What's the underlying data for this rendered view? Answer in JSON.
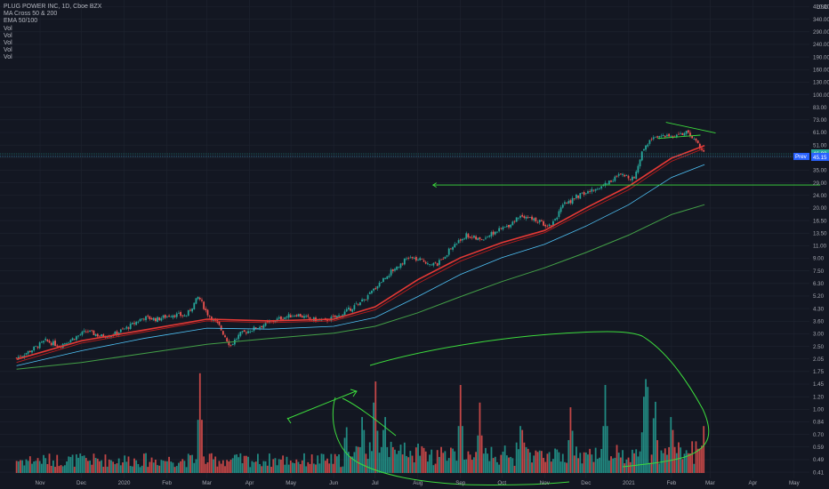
{
  "legend": {
    "symbol": "PLUG POWER INC, 1D, Cboe BZX",
    "indicators": [
      "MA Cross 50 & 200",
      "EMA 50/100",
      "Vol",
      "Vol",
      "Vol",
      "Vol",
      "Vol"
    ]
  },
  "colors": {
    "background": "#131722",
    "grid": "#1f2430",
    "up": "#26a69a",
    "down": "#ef5350",
    "ma_fast": "#e53935",
    "ma_fast2": "#b71c1c",
    "ema_blue": "#4fc3f7",
    "ma_slow": "#43a047",
    "drawing": "#3ddc3d",
    "badge_green": "#26a69a",
    "badge_blue": "#2962ff"
  },
  "chart_data": {
    "type": "candlestick",
    "y_scale": "log",
    "y_unit": "USD",
    "y_ticks": [
      420.0,
      340.0,
      290.0,
      240.0,
      190.0,
      160.0,
      130.0,
      100.0,
      83.0,
      73.0,
      61.0,
      51.0,
      42.0,
      35.0,
      29.0,
      24.0,
      20.0,
      16.5,
      13.5,
      11.0,
      9.0,
      7.5,
      6.3,
      5.2,
      4.3,
      3.6,
      3.0,
      2.5,
      2.05,
      1.75,
      1.45,
      1.2,
      1.0,
      0.84,
      0.7,
      0.59,
      0.49,
      0.41
    ],
    "x_ticks": [
      "Nov",
      "Dec",
      "2020",
      "Feb",
      "Mar",
      "Apr",
      "May",
      "Jun",
      "Jul",
      "Aug",
      "Sep",
      "Oct",
      "Nov",
      "Dec",
      "2021",
      "Feb",
      "Mar",
      "Apr",
      "May"
    ],
    "price_labels": [
      {
        "label": "46.93",
        "value": 46.93,
        "kind": "last"
      },
      {
        "label": "Prev",
        "kind": "prev-close-tag"
      },
      {
        "label": "45.15",
        "value": 45.15,
        "kind": "prev"
      }
    ],
    "price_path": [
      {
        "m": "2019-10-15",
        "p": 2.25
      },
      {
        "m": "2019-10-25",
        "p": 2.5
      },
      {
        "m": "2019-11-05",
        "p": 2.9
      },
      {
        "m": "2019-11-15",
        "p": 2.7
      },
      {
        "m": "2019-11-25",
        "p": 3.0
      },
      {
        "m": "2019-12-05",
        "p": 3.35
      },
      {
        "m": "2019-12-15",
        "p": 3.1
      },
      {
        "m": "2019-12-25",
        "p": 3.2
      },
      {
        "m": "2020-01-05",
        "p": 3.6
      },
      {
        "m": "2020-01-15",
        "p": 4.1
      },
      {
        "m": "2020-01-25",
        "p": 4.0
      },
      {
        "m": "2020-02-05",
        "p": 4.3
      },
      {
        "m": "2020-02-15",
        "p": 4.2
      },
      {
        "m": "2020-02-24",
        "p": 5.6
      },
      {
        "m": "2020-03-01",
        "p": 4.4
      },
      {
        "m": "2020-03-10",
        "p": 3.6
      },
      {
        "m": "2020-03-18",
        "p": 2.7
      },
      {
        "m": "2020-03-25",
        "p": 3.2
      },
      {
        "m": "2020-04-05",
        "p": 3.5
      },
      {
        "m": "2020-04-15",
        "p": 3.8
      },
      {
        "m": "2020-04-25",
        "p": 4.1
      },
      {
        "m": "2020-05-05",
        "p": 4.3
      },
      {
        "m": "2020-05-15",
        "p": 4.0
      },
      {
        "m": "2020-05-25",
        "p": 3.9
      },
      {
        "m": "2020-06-05",
        "p": 4.2
      },
      {
        "m": "2020-06-15",
        "p": 4.8
      },
      {
        "m": "2020-06-25",
        "p": 5.5
      },
      {
        "m": "2020-07-05",
        "p": 7.0
      },
      {
        "m": "2020-07-15",
        "p": 8.5
      },
      {
        "m": "2020-07-25",
        "p": 10.0
      },
      {
        "m": "2020-08-05",
        "p": 9.5
      },
      {
        "m": "2020-08-15",
        "p": 9.0
      },
      {
        "m": "2020-08-25",
        "p": 11.5
      },
      {
        "m": "2020-09-05",
        "p": 14.0
      },
      {
        "m": "2020-09-15",
        "p": 13.0
      },
      {
        "m": "2020-09-25",
        "p": 14.5
      },
      {
        "m": "2020-10-05",
        "p": 16.0
      },
      {
        "m": "2020-10-15",
        "p": 19.0
      },
      {
        "m": "2020-10-25",
        "p": 17.5
      },
      {
        "m": "2020-11-05",
        "p": 16.0
      },
      {
        "m": "2020-11-15",
        "p": 22.0
      },
      {
        "m": "2020-11-25",
        "p": 25.0
      },
      {
        "m": "2020-12-05",
        "p": 27.0
      },
      {
        "m": "2020-12-15",
        "p": 30.0
      },
      {
        "m": "2020-12-25",
        "p": 34.0
      },
      {
        "m": "2021-01-05",
        "p": 33.0
      },
      {
        "m": "2021-01-12",
        "p": 52.0
      },
      {
        "m": "2021-01-20",
        "p": 62.0
      },
      {
        "m": "2021-01-28",
        "p": 60.0
      },
      {
        "m": "2021-02-05",
        "p": 63.0
      },
      {
        "m": "2021-02-12",
        "p": 64.0
      },
      {
        "m": "2021-02-19",
        "p": 57.0
      },
      {
        "m": "2021-02-25",
        "p": 46.9
      }
    ],
    "series": [
      {
        "kind": "ma",
        "color": "#e53935",
        "width": 1.6,
        "points": [
          {
            "m": "2019-10-15",
            "p": 2.2
          },
          {
            "m": "2019-12-01",
            "p": 2.9
          },
          {
            "m": "2020-01-15",
            "p": 3.4
          },
          {
            "m": "2020-03-01",
            "p": 4.0
          },
          {
            "m": "2020-04-15",
            "p": 3.9
          },
          {
            "m": "2020-06-01",
            "p": 4.0
          },
          {
            "m": "2020-07-01",
            "p": 4.8
          },
          {
            "m": "2020-08-01",
            "p": 7.2
          },
          {
            "m": "2020-09-01",
            "p": 10.0
          },
          {
            "m": "2020-10-01",
            "p": 12.5
          },
          {
            "m": "2020-11-01",
            "p": 15.0
          },
          {
            "m": "2020-12-01",
            "p": 21.0
          },
          {
            "m": "2021-01-01",
            "p": 29.0
          },
          {
            "m": "2021-02-01",
            "p": 44.0
          },
          {
            "m": "2021-02-25",
            "p": 53.0
          }
        ]
      },
      {
        "kind": "ma",
        "color": "#b71c1c",
        "width": 0.9,
        "points": [
          {
            "m": "2019-10-15",
            "p": 2.1
          },
          {
            "m": "2019-12-01",
            "p": 2.8
          },
          {
            "m": "2020-01-15",
            "p": 3.3
          },
          {
            "m": "2020-03-01",
            "p": 3.9
          },
          {
            "m": "2020-04-15",
            "p": 3.8
          },
          {
            "m": "2020-06-01",
            "p": 3.9
          },
          {
            "m": "2020-07-01",
            "p": 4.6
          },
          {
            "m": "2020-08-01",
            "p": 6.8
          },
          {
            "m": "2020-09-01",
            "p": 9.5
          },
          {
            "m": "2020-10-01",
            "p": 12.0
          },
          {
            "m": "2020-11-01",
            "p": 14.5
          },
          {
            "m": "2020-12-01",
            "p": 20.0
          },
          {
            "m": "2021-01-01",
            "p": 27.5
          },
          {
            "m": "2021-02-01",
            "p": 42.0
          },
          {
            "m": "2021-02-25",
            "p": 51.0
          }
        ]
      },
      {
        "kind": "ema",
        "color": "#4fc3f7",
        "width": 0.8,
        "points": [
          {
            "m": "2019-10-15",
            "p": 2.0
          },
          {
            "m": "2019-12-01",
            "p": 2.5
          },
          {
            "m": "2020-01-15",
            "p": 3.0
          },
          {
            "m": "2020-03-01",
            "p": 3.5
          },
          {
            "m": "2020-04-15",
            "p": 3.45
          },
          {
            "m": "2020-06-01",
            "p": 3.6
          },
          {
            "m": "2020-07-01",
            "p": 4.1
          },
          {
            "m": "2020-08-01",
            "p": 5.6
          },
          {
            "m": "2020-09-01",
            "p": 7.8
          },
          {
            "m": "2020-10-01",
            "p": 10.0
          },
          {
            "m": "2020-11-01",
            "p": 12.2
          },
          {
            "m": "2020-12-01",
            "p": 16.0
          },
          {
            "m": "2021-01-01",
            "p": 22.0
          },
          {
            "m": "2021-02-01",
            "p": 33.0
          },
          {
            "m": "2021-02-25",
            "p": 40.0
          }
        ]
      },
      {
        "kind": "ma",
        "color": "#43a047",
        "width": 1.0,
        "points": [
          {
            "m": "2019-10-15",
            "p": 1.9
          },
          {
            "m": "2019-12-01",
            "p": 2.1
          },
          {
            "m": "2020-01-15",
            "p": 2.4
          },
          {
            "m": "2020-03-01",
            "p": 2.75
          },
          {
            "m": "2020-04-15",
            "p": 3.0
          },
          {
            "m": "2020-06-01",
            "p": 3.25
          },
          {
            "m": "2020-07-01",
            "p": 3.6
          },
          {
            "m": "2020-08-01",
            "p": 4.4
          },
          {
            "m": "2020-09-01",
            "p": 5.6
          },
          {
            "m": "2020-10-01",
            "p": 7.0
          },
          {
            "m": "2020-11-01",
            "p": 8.6
          },
          {
            "m": "2020-12-01",
            "p": 10.8
          },
          {
            "m": "2021-01-01",
            "p": 14.0
          },
          {
            "m": "2021-02-01",
            "p": 19.0
          },
          {
            "m": "2021-02-25",
            "p": 22.0
          }
        ]
      }
    ],
    "volume_spikes": [
      {
        "m": "2020-02-25",
        "f": 0.85
      },
      {
        "m": "2020-06-10",
        "f": 0.45
      },
      {
        "m": "2020-06-22",
        "f": 0.55
      },
      {
        "m": "2020-07-01",
        "f": 0.9
      },
      {
        "m": "2020-07-08",
        "f": 0.55
      },
      {
        "m": "2020-09-01",
        "f": 0.75
      },
      {
        "m": "2020-09-15",
        "f": 0.6
      },
      {
        "m": "2020-10-15",
        "f": 0.5
      },
      {
        "m": "2020-11-20",
        "f": 0.6
      },
      {
        "m": "2020-12-15",
        "f": 0.75
      },
      {
        "m": "2021-01-12",
        "f": 0.65
      },
      {
        "m": "2021-01-14",
        "f": 1.0
      },
      {
        "m": "2021-01-20",
        "f": 0.7
      },
      {
        "m": "2021-02-01",
        "f": 0.55
      },
      {
        "m": "2021-02-25",
        "f": 0.5
      }
    ],
    "drawings": [
      {
        "kind": "horizontal-line",
        "price": 29.5,
        "from": "2020-08-12",
        "to": "2021-05-20"
      },
      {
        "kind": "trendline",
        "from": {
          "m": "2021-01-28",
          "p": 75
        },
        "to": {
          "m": "2021-03-05",
          "p": 64
        }
      },
      {
        "kind": "trendline",
        "from": {
          "m": "2021-01-22",
          "p": 59
        },
        "to": {
          "m": "2021-02-22",
          "p": 62
        }
      }
    ]
  }
}
